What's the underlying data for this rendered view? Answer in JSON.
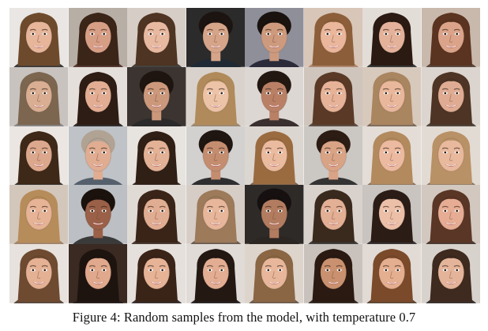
{
  "figure": {
    "caption": "Figure 4: Random samples from the model, with temperature 0.7",
    "grid": {
      "rows": 5,
      "columns": 8
    },
    "samples": [
      {
        "bg": "#e9e6e3",
        "skin": "#e6b59a",
        "hair": "#6e4a2c",
        "shirt": "#3a3a3a",
        "long": true
      },
      {
        "bg": "#b7aea6",
        "skin": "#d79e86",
        "hair": "#3b2418",
        "shirt": "#5a3c34",
        "long": true
      },
      {
        "bg": "#d6cdc6",
        "skin": "#e8b9a1",
        "hair": "#4e3422",
        "shirt": "#444444",
        "long": true
      },
      {
        "bg": "#2b2b2b",
        "skin": "#d5a489",
        "hair": "#1c1410",
        "shirt": "#1f2a35",
        "long": false
      },
      {
        "bg": "#8f8f9a",
        "skin": "#cd9a7e",
        "hair": "#1a120e",
        "shirt": "#2b2b3a",
        "long": false
      },
      {
        "bg": "#d8c6b8",
        "skin": "#eab69c",
        "hair": "#8c5f3a",
        "shirt": "#b08a72",
        "long": true
      },
      {
        "bg": "#e3ddd8",
        "skin": "#e4b29a",
        "hair": "#2a1a12",
        "shirt": "#3c3c3c",
        "long": true
      },
      {
        "bg": "#c9b9ad",
        "skin": "#dba48a",
        "hair": "#5a3420",
        "shirt": "#5a4a40",
        "long": true
      },
      {
        "bg": "#c8c3bf",
        "skin": "#d9ae92",
        "hair": "#7c6650",
        "shirt": "#8a8a8a",
        "long": true
      },
      {
        "bg": "#e4dfdb",
        "skin": "#e2ad93",
        "hair": "#2e1d14",
        "shirt": "#303030",
        "long": true
      },
      {
        "bg": "#3b3431",
        "skin": "#cc987c",
        "hair": "#1e1510",
        "shirt": "#2a2a2a",
        "long": false
      },
      {
        "bg": "#d9d2cc",
        "skin": "#edc3a7",
        "hair": "#b08a5a",
        "shirt": "#9c8874",
        "long": true
      },
      {
        "bg": "#dcd7d3",
        "skin": "#b98066",
        "hair": "#231711",
        "shirt": "#3a3030",
        "long": false
      },
      {
        "bg": "#cfc5bd",
        "skin": "#e7b398",
        "hair": "#5a3a26",
        "shirt": "#5c5048",
        "long": true
      },
      {
        "bg": "#d7c9bc",
        "skin": "#e9b89c",
        "hair": "#a98560",
        "shirt": "#7a6a5c",
        "long": true
      },
      {
        "bg": "#dcd5cf",
        "skin": "#dfac93",
        "hair": "#4d3424",
        "shirt": "#504840",
        "long": true
      },
      {
        "bg": "#ebe6e2",
        "skin": "#dca88d",
        "hair": "#3e2818",
        "shirt": "#3a3a3a",
        "long": true
      },
      {
        "bg": "#bfc3c8",
        "skin": "#e0ad92",
        "hair": "#b1a394",
        "shirt": "#55606c",
        "long": false
      },
      {
        "bg": "#e7e3df",
        "skin": "#e3b196",
        "hair": "#2f1f15",
        "shirt": "#3a2d28",
        "long": true
      },
      {
        "bg": "#d3d1d0",
        "skin": "#c48d70",
        "hair": "#1f1611",
        "shirt": "#2e2e30",
        "long": false
      },
      {
        "bg": "#dcd6d0",
        "skin": "#ebbba0",
        "hair": "#9b6b40",
        "shirt": "#7a6252",
        "long": true
      },
      {
        "bg": "#cbc7c3",
        "skin": "#d9a386",
        "hair": "#2c1c13",
        "shirt": "#343434",
        "long": false
      },
      {
        "bg": "#e4ddd7",
        "skin": "#ecbaa0",
        "hair": "#b38a5e",
        "shirt": "#8a7464",
        "long": true
      },
      {
        "bg": "#e2dbd4",
        "skin": "#e8b99d",
        "hair": "#b99166",
        "shirt": "#8c7a6a",
        "long": true
      },
      {
        "bg": "#d3c6bb",
        "skin": "#e6b396",
        "hair": "#b68c5a",
        "shirt": "#a0846c",
        "long": true
      },
      {
        "bg": "#bcc0c4",
        "skin": "#9a6048",
        "hair": "#1b120d",
        "shirt": "#3a3a3a",
        "long": false
      },
      {
        "bg": "#e0dad5",
        "skin": "#e1ad92",
        "hair": "#3a2418",
        "shirt": "#4a3a32",
        "long": true
      },
      {
        "bg": "#d6cdc6",
        "skin": "#e7b69b",
        "hair": "#9c7a5a",
        "shirt": "#6a5a50",
        "long": true
      },
      {
        "bg": "#2e2a28",
        "skin": "#b27c60",
        "hair": "#161010",
        "shirt": "#2c2622",
        "long": false
      },
      {
        "bg": "#d9d2cc",
        "skin": "#e3af95",
        "hair": "#3a2a1e",
        "shirt": "#404040",
        "long": true
      },
      {
        "bg": "#c9c4c0",
        "skin": "#ecc0a8",
        "hair": "#2b1d16",
        "shirt": "#3a3636",
        "long": true
      },
      {
        "bg": "#d2c8bf",
        "skin": "#e6ad94",
        "hair": "#5a3626",
        "shirt": "#4a3c34",
        "long": true
      },
      {
        "bg": "#e7e2dd",
        "skin": "#e4b195",
        "hair": "#6e4a30",
        "shirt": "#5a4a40",
        "long": true
      },
      {
        "bg": "#3a2a22",
        "skin": "#e0a88c",
        "hair": "#1e140f",
        "shirt": "#2a2222",
        "long": true
      },
      {
        "bg": "#e5e0dc",
        "skin": "#e6b397",
        "hair": "#3a2418",
        "shirt": "#3a3232",
        "long": true
      },
      {
        "bg": "#e0dbd7",
        "skin": "#e2ad92",
        "hair": "#241813",
        "shirt": "#2e2a2a",
        "long": true
      },
      {
        "bg": "#ddd4cc",
        "skin": "#e8b79b",
        "hair": "#8a6644",
        "shirt": "#6c5c50",
        "long": true
      },
      {
        "bg": "#c9c2bc",
        "skin": "#c9916f",
        "hair": "#2a1a12",
        "shirt": "#3a302a",
        "long": true
      },
      {
        "bg": "#e2dbd5",
        "skin": "#e4ae90",
        "hair": "#7a4a2a",
        "shirt": "#5c4838",
        "long": true
      },
      {
        "bg": "#d8d2cd",
        "skin": "#e4b49a",
        "hair": "#3e2a1e",
        "shirt": "#3c3634",
        "long": true
      }
    ]
  }
}
